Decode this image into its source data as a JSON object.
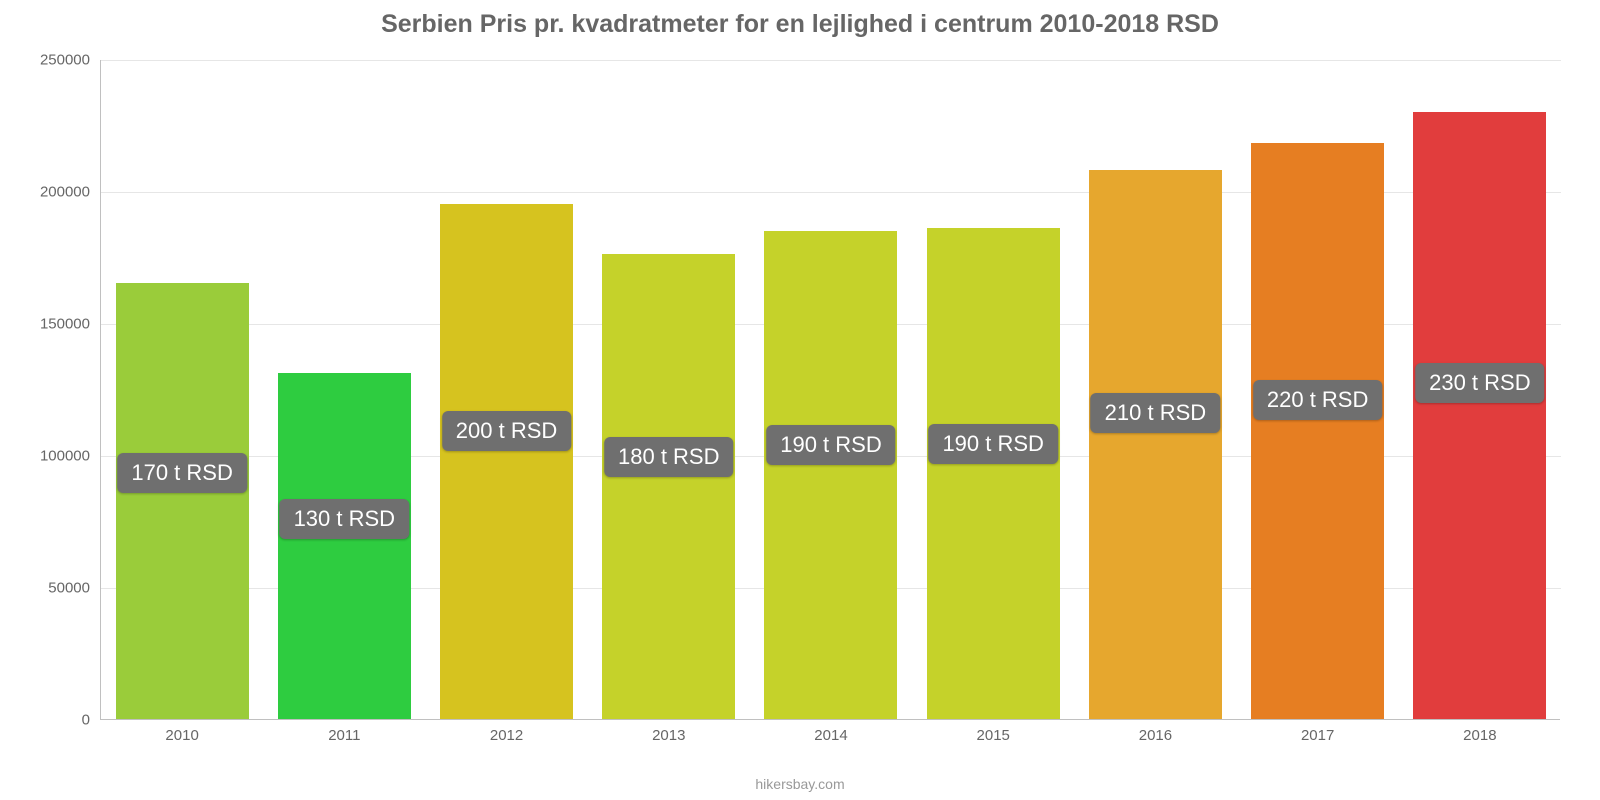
{
  "chart": {
    "type": "bar",
    "title": "Serbien Pris pr. kvadratmeter for en lejlighed i centrum 2010-2018 RSD",
    "title_fontsize": 25,
    "title_color": "#666666",
    "background_color": "#ffffff",
    "grid_color": "#e6e6e6",
    "axis_color": "#c0c0c0",
    "tick_color": "#666666",
    "tick_fontsize": 15,
    "badge_bg": "#6f6f6f",
    "badge_color": "#ffffff",
    "badge_fontsize": 22,
    "bar_width_ratio": 0.82,
    "ylim": [
      0,
      250000
    ],
    "ytick_step": 50000,
    "yticks": [
      {
        "value": 0,
        "label": "0"
      },
      {
        "value": 50000,
        "label": "50000"
      },
      {
        "value": 100000,
        "label": "100000"
      },
      {
        "value": 150000,
        "label": "150000"
      },
      {
        "value": 200000,
        "label": "200000"
      },
      {
        "value": 250000,
        "label": "250000"
      }
    ],
    "categories": [
      "2010",
      "2011",
      "2012",
      "2013",
      "2014",
      "2015",
      "2016",
      "2017",
      "2018"
    ],
    "values": [
      165000,
      131000,
      195000,
      176000,
      185000,
      186000,
      208000,
      218000,
      230000
    ],
    "bar_colors": [
      "#9acc3a",
      "#2ecc40",
      "#d6c31f",
      "#c5d22a",
      "#c5d22a",
      "#c5d22a",
      "#e6a72e",
      "#e67e22",
      "#e13d3d"
    ],
    "value_labels": [
      "170 t RSD",
      "130 t RSD",
      "200 t RSD",
      "180 t RSD",
      "190 t RSD",
      "190 t RSD",
      "210 t RSD",
      "220 t RSD",
      "230 t RSD"
    ],
    "source": "hikersbay.com"
  }
}
